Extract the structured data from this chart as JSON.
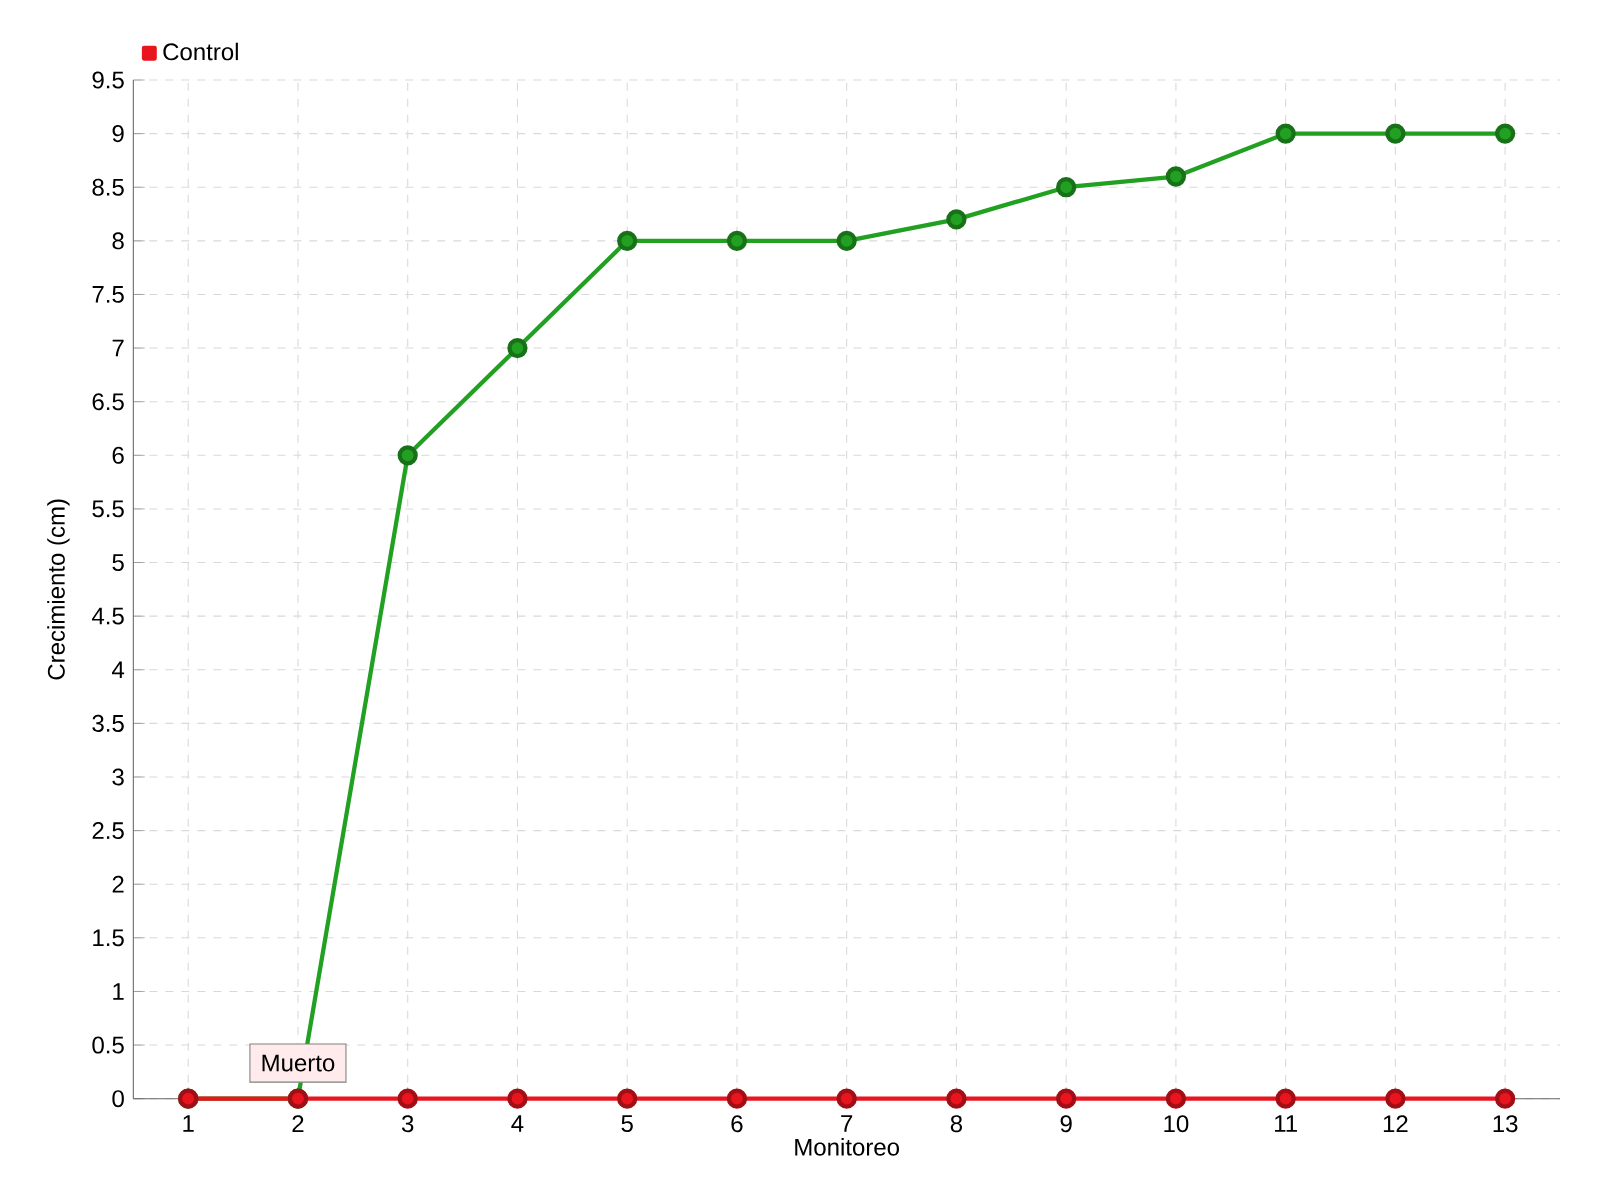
{
  "chart_data": {
    "type": "line",
    "xlabel": "Monitoreo",
    "ylabel": "Crecimiento (cm)",
    "categories": [
      "1",
      "2",
      "3",
      "4",
      "5",
      "6",
      "7",
      "8",
      "9",
      "10",
      "11",
      "12",
      "13"
    ],
    "series": [
      {
        "color": "#22a022",
        "values": [
          0,
          0,
          6,
          7,
          8,
          8,
          8,
          8.2,
          8.5,
          8.6,
          9,
          9,
          9
        ]
      },
      {
        "name": "Control",
        "color": "#e8141e",
        "values": [
          0,
          0,
          0,
          0,
          0,
          0,
          0,
          0,
          0,
          0,
          0,
          0,
          0
        ]
      }
    ],
    "ylim": [
      0,
      9.5
    ],
    "yticks": [
      0,
      0.5,
      1,
      1.5,
      2,
      2.5,
      3,
      3.5,
      4,
      4.5,
      5,
      5.5,
      6,
      6.5,
      7,
      7.5,
      8,
      8.5,
      9,
      9.5
    ],
    "grid": true,
    "legend": "top left",
    "marker": "circle",
    "annotations": [
      {
        "text": "Muerto",
        "x": "2",
        "y": 0
      }
    ]
  }
}
